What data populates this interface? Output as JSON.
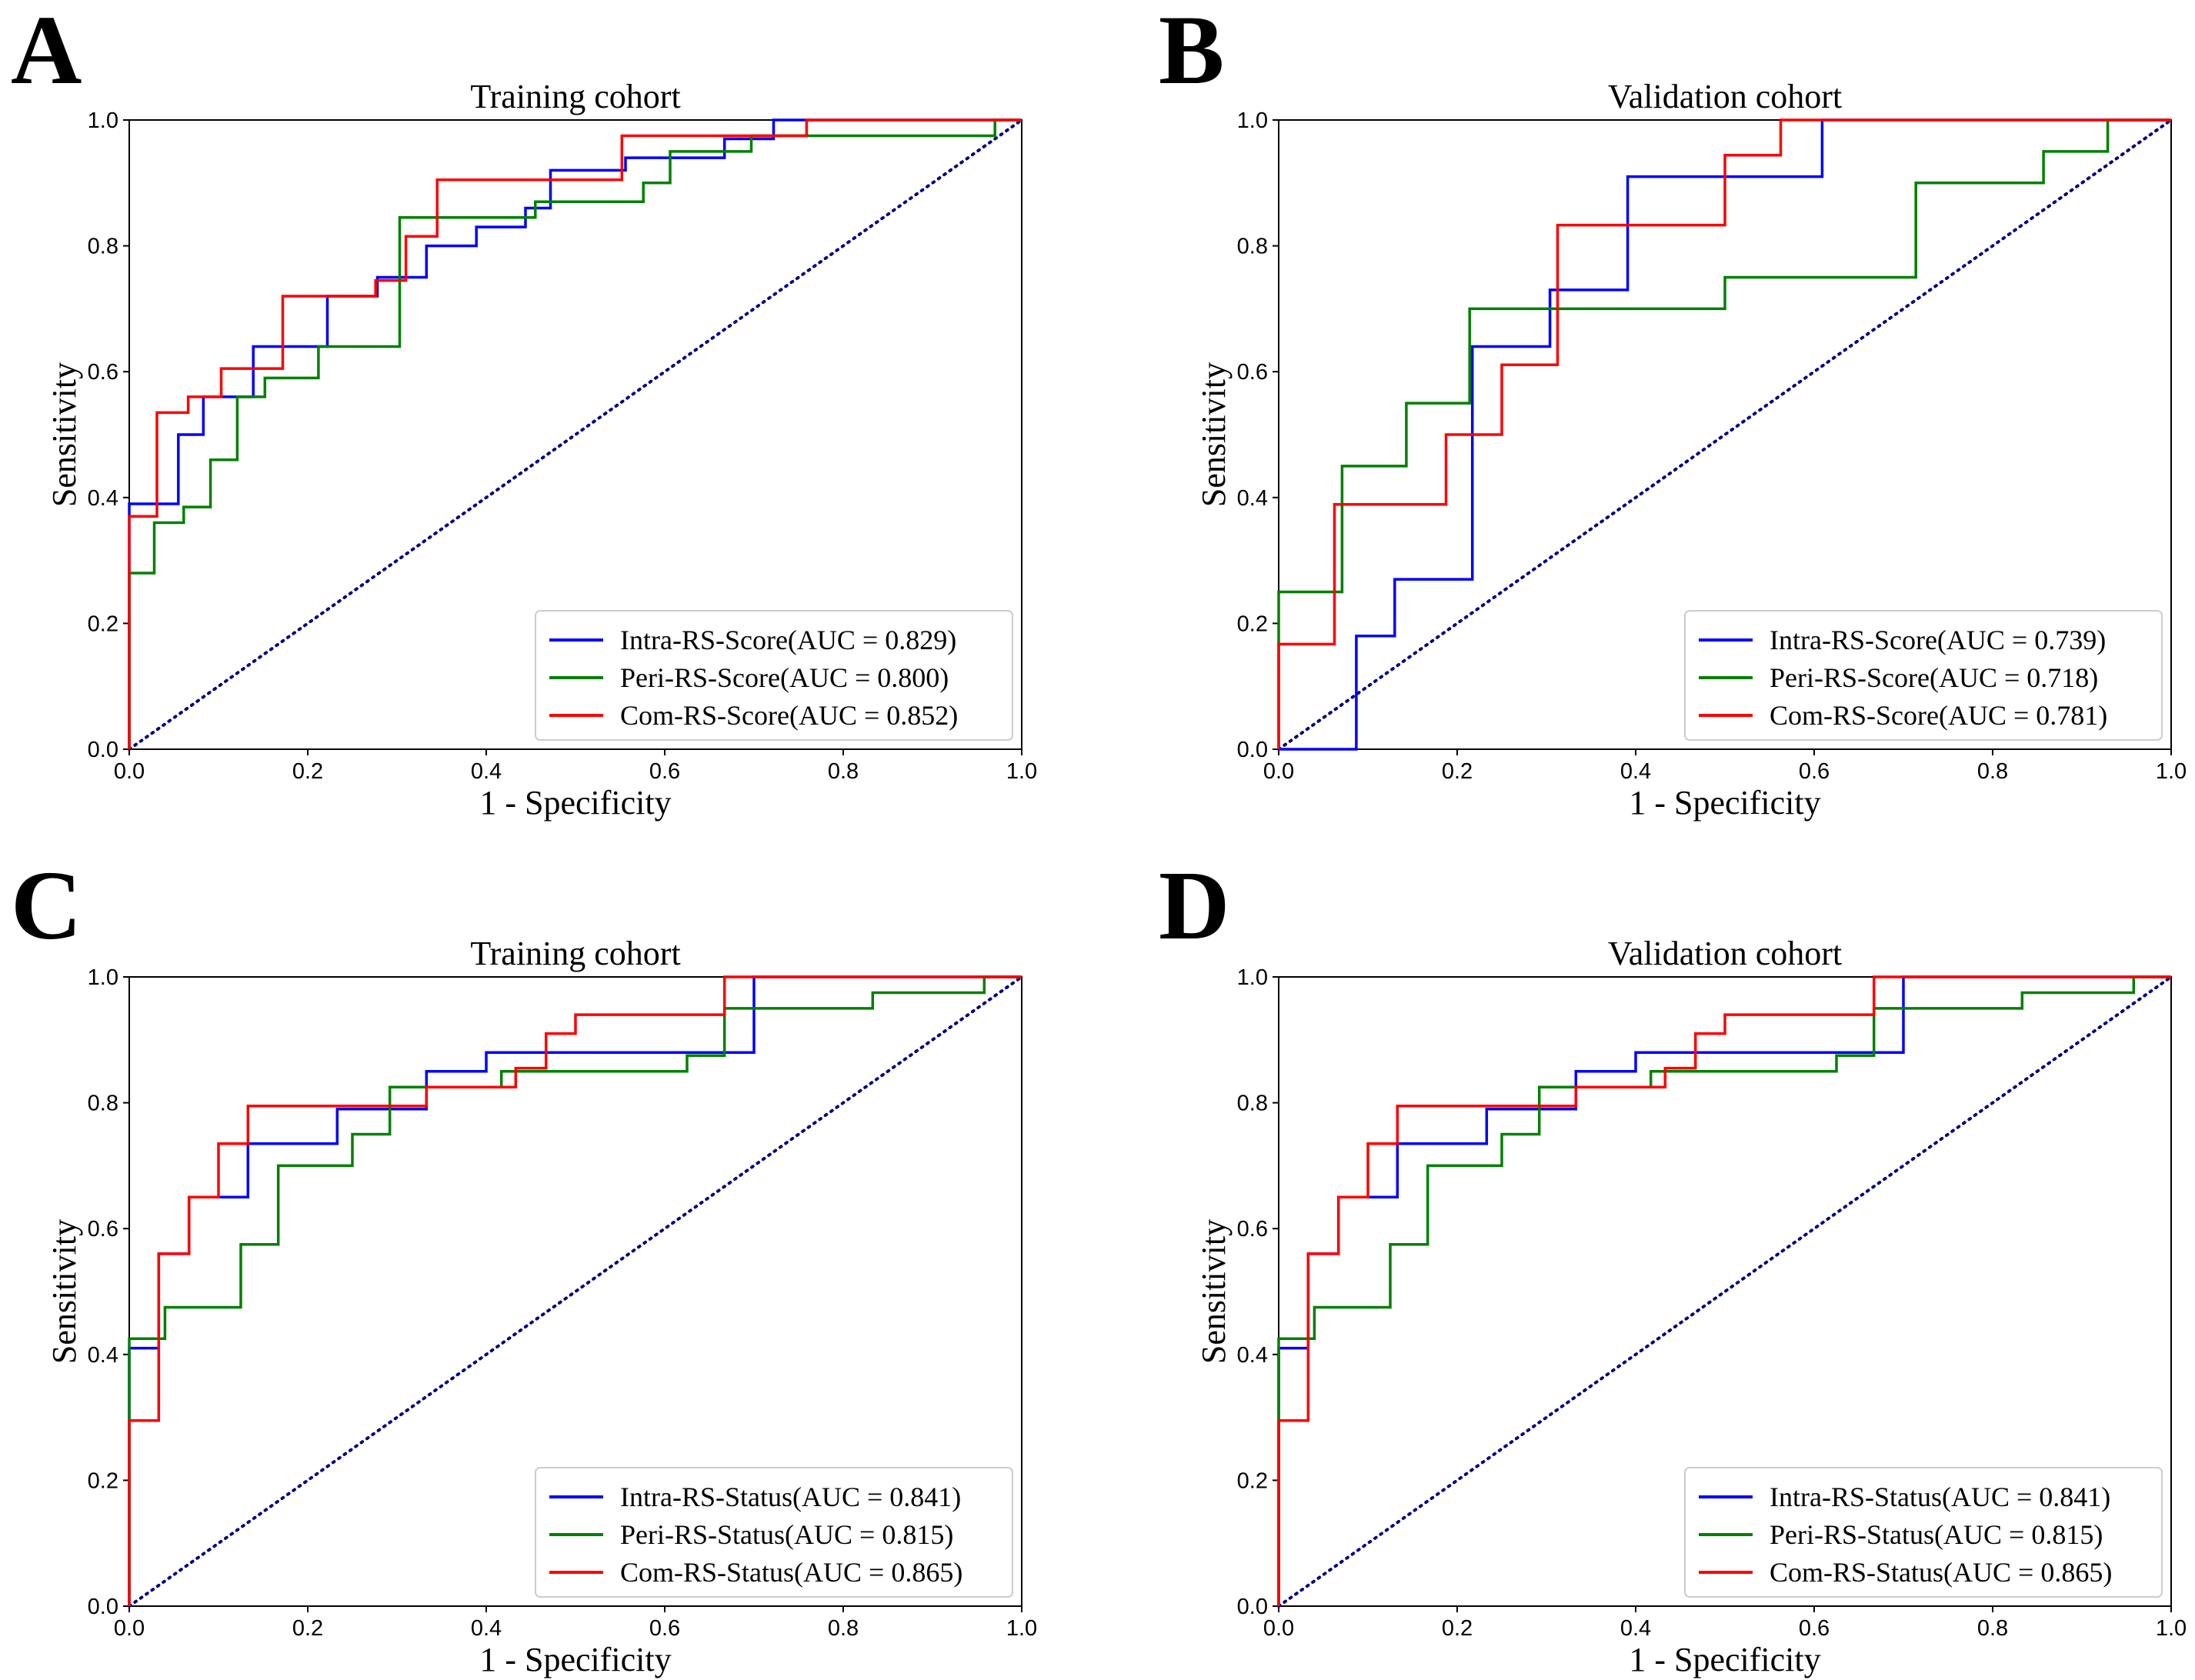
{
  "chart_data": [
    {
      "panel": "A",
      "type": "line",
      "title": "Training cohort",
      "xlabel": "1 - Specificity",
      "ylabel": "Sensitivity",
      "xlim": [
        0,
        1
      ],
      "ylim": [
        0,
        1
      ],
      "xticks": [
        "0.0",
        "0.2",
        "0.4",
        "0.6",
        "0.8",
        "1.0"
      ],
      "yticks": [
        "0.0",
        "0.2",
        "0.4",
        "0.6",
        "0.8",
        "1.0"
      ],
      "legend_position": "lower-right",
      "diagonal": {
        "color": "#000080",
        "style": "dotted"
      },
      "series": [
        {
          "name": "Intra-RS-Score(AUC = 0.829)",
          "color": "#0000ff",
          "x": [
            0,
            0,
            0.055,
            0.055,
            0.083,
            0.083,
            0.139,
            0.139,
            0.222,
            0.222,
            0.278,
            0.278,
            0.333,
            0.333,
            0.389,
            0.389,
            0.444,
            0.444,
            0.472,
            0.472,
            0.556,
            0.556,
            0.667,
            0.667,
            0.722,
            0.722,
            1.0
          ],
          "y": [
            0,
            0.39,
            0.39,
            0.5,
            0.5,
            0.56,
            0.56,
            0.64,
            0.64,
            0.72,
            0.72,
            0.75,
            0.75,
            0.8,
            0.8,
            0.83,
            0.83,
            0.86,
            0.86,
            0.92,
            0.92,
            0.94,
            0.94,
            0.97,
            0.97,
            1.0,
            1.0
          ]
        },
        {
          "name": "Peri-RS-Score(AUC = 0.800)",
          "color": "#008000",
          "x": [
            0,
            0,
            0.028,
            0.028,
            0.061,
            0.061,
            0.091,
            0.091,
            0.121,
            0.121,
            0.152,
            0.152,
            0.212,
            0.212,
            0.303,
            0.303,
            0.455,
            0.455,
            0.576,
            0.576,
            0.606,
            0.606,
            0.697,
            0.697,
            0.97,
            0.97,
            1.0
          ],
          "y": [
            0,
            0.28,
            0.28,
            0.36,
            0.36,
            0.385,
            0.385,
            0.46,
            0.46,
            0.56,
            0.56,
            0.59,
            0.59,
            0.64,
            0.64,
            0.845,
            0.845,
            0.87,
            0.87,
            0.9,
            0.9,
            0.95,
            0.95,
            0.975,
            0.975,
            1.0,
            1.0
          ]
        },
        {
          "name": "Com-RS-Score(AUC = 0.852)",
          "color": "#ff0000",
          "x": [
            0,
            0,
            0.031,
            0.031,
            0.066,
            0.066,
            0.103,
            0.103,
            0.172,
            0.172,
            0.276,
            0.276,
            0.31,
            0.31,
            0.345,
            0.345,
            0.552,
            0.552,
            0.759,
            0.759,
            1.0
          ],
          "y": [
            0,
            0.37,
            0.37,
            0.535,
            0.535,
            0.56,
            0.56,
            0.605,
            0.605,
            0.72,
            0.72,
            0.745,
            0.745,
            0.815,
            0.815,
            0.905,
            0.905,
            0.975,
            0.975,
            1.0,
            1.0
          ]
        }
      ]
    },
    {
      "panel": "B",
      "type": "line",
      "title": "Validation cohort",
      "xlabel": "1 - Specificity",
      "ylabel": "Sensitivity",
      "xlim": [
        0,
        1
      ],
      "ylim": [
        0,
        1
      ],
      "xticks": [
        "0.0",
        "0.2",
        "0.4",
        "0.6",
        "0.8",
        "1.0"
      ],
      "yticks": [
        "0.0",
        "0.2",
        "0.4",
        "0.6",
        "0.8",
        "1.0"
      ],
      "legend_position": "lower-right",
      "diagonal": {
        "color": "#000080",
        "style": "dotted"
      },
      "series": [
        {
          "name": "Intra-RS-Score(AUC = 0.739)",
          "color": "#0000ff",
          "x": [
            0,
            0.087,
            0.087,
            0.13,
            0.13,
            0.217,
            0.217,
            0.304,
            0.304,
            0.391,
            0.391,
            0.609,
            0.609,
            1.0
          ],
          "y": [
            0,
            0,
            0.18,
            0.18,
            0.27,
            0.27,
            0.64,
            0.64,
            0.73,
            0.73,
            0.91,
            0.91,
            1.0,
            1.0
          ]
        },
        {
          "name": "Peri-RS-Score(AUC = 0.718)",
          "color": "#008000",
          "x": [
            0,
            0,
            0.071,
            0.071,
            0.143,
            0.143,
            0.214,
            0.214,
            0.5,
            0.5,
            0.714,
            0.714,
            0.857,
            0.857,
            0.929,
            0.929,
            1.0
          ],
          "y": [
            0,
            0.25,
            0.25,
            0.45,
            0.45,
            0.55,
            0.55,
            0.7,
            0.7,
            0.75,
            0.75,
            0.9,
            0.9,
            0.95,
            0.95,
            1.0,
            1.0
          ]
        },
        {
          "name": "Com-RS-Score(AUC = 0.781)",
          "color": "#ff0000",
          "x": [
            0,
            0,
            0.0625,
            0.0625,
            0.1875,
            0.1875,
            0.25,
            0.25,
            0.3125,
            0.3125,
            0.5,
            0.5,
            0.5625,
            0.5625,
            1.0
          ],
          "y": [
            0,
            0.167,
            0.167,
            0.389,
            0.389,
            0.5,
            0.5,
            0.611,
            0.611,
            0.833,
            0.833,
            0.944,
            0.944,
            1.0,
            1.0
          ]
        }
      ]
    },
    {
      "panel": "C",
      "type": "line",
      "title": "Training cohort",
      "xlabel": "1 - Specificity",
      "ylabel": "Sensitivity",
      "xlim": [
        0,
        1
      ],
      "ylim": [
        0,
        1
      ],
      "xticks": [
        "0.0",
        "0.2",
        "0.4",
        "0.6",
        "0.8",
        "1.0"
      ],
      "yticks": [
        "0.0",
        "0.2",
        "0.4",
        "0.6",
        "0.8",
        "1.0"
      ],
      "legend_position": "lower-right",
      "diagonal": {
        "color": "#000080",
        "style": "dotted"
      },
      "series": [
        {
          "name": "Intra-RS-Status(AUC = 0.841)",
          "color": "#0000ff",
          "x": [
            0,
            0,
            0.033,
            0.033,
            0.067,
            0.067,
            0.133,
            0.133,
            0.233,
            0.233,
            0.333,
            0.333,
            0.4,
            0.4,
            0.7,
            0.7,
            1.0
          ],
          "y": [
            0,
            0.41,
            0.41,
            0.56,
            0.56,
            0.65,
            0.65,
            0.735,
            0.735,
            0.79,
            0.79,
            0.85,
            0.85,
            0.88,
            0.88,
            1.0,
            1.0
          ]
        },
        {
          "name": "Peri-RS-Status(AUC = 0.815)",
          "color": "#008000",
          "x": [
            0,
            0,
            0.04,
            0.04,
            0.125,
            0.125,
            0.167,
            0.167,
            0.25,
            0.25,
            0.292,
            0.292,
            0.417,
            0.417,
            0.625,
            0.625,
            0.667,
            0.667,
            0.833,
            0.833,
            0.958,
            0.958,
            1.0
          ],
          "y": [
            0,
            0.425,
            0.425,
            0.475,
            0.475,
            0.575,
            0.575,
            0.7,
            0.7,
            0.75,
            0.75,
            0.825,
            0.825,
            0.85,
            0.85,
            0.875,
            0.875,
            0.95,
            0.95,
            0.975,
            0.975,
            1.0,
            1.0
          ]
        },
        {
          "name": "Com-RS-Status(AUC = 0.865)",
          "color": "#ff0000",
          "x": [
            0,
            0,
            0.033,
            0.033,
            0.067,
            0.067,
            0.1,
            0.1,
            0.133,
            0.133,
            0.333,
            0.333,
            0.433,
            0.433,
            0.467,
            0.467,
            0.5,
            0.5,
            0.667,
            0.667,
            1.0
          ],
          "y": [
            0,
            0.295,
            0.295,
            0.56,
            0.56,
            0.65,
            0.65,
            0.735,
            0.735,
            0.795,
            0.795,
            0.825,
            0.825,
            0.855,
            0.855,
            0.91,
            0.91,
            0.94,
            0.94,
            1.0,
            1.0
          ]
        }
      ]
    },
    {
      "panel": "D",
      "type": "line",
      "title": "Validation cohort",
      "xlabel": "1 - Specificity",
      "ylabel": "Sensitivity",
      "xlim": [
        0,
        1
      ],
      "ylim": [
        0,
        1
      ],
      "xticks": [
        "0.0",
        "0.2",
        "0.4",
        "0.6",
        "0.8",
        "1.0"
      ],
      "yticks": [
        "0.0",
        "0.2",
        "0.4",
        "0.6",
        "0.8",
        "1.0"
      ],
      "legend_position": "lower-right",
      "diagonal": {
        "color": "#000080",
        "style": "dotted"
      },
      "series": [
        {
          "name": "Intra-RS-Status(AUC = 0.841)",
          "color": "#0000ff",
          "x": [
            0,
            0,
            0.033,
            0.033,
            0.067,
            0.067,
            0.133,
            0.133,
            0.233,
            0.233,
            0.333,
            0.333,
            0.4,
            0.4,
            0.7,
            0.7,
            1.0
          ],
          "y": [
            0,
            0.41,
            0.41,
            0.56,
            0.56,
            0.65,
            0.65,
            0.735,
            0.735,
            0.79,
            0.79,
            0.85,
            0.85,
            0.88,
            0.88,
            1.0,
            1.0
          ]
        },
        {
          "name": "Peri-RS-Status(AUC = 0.815)",
          "color": "#008000",
          "x": [
            0,
            0,
            0.04,
            0.04,
            0.125,
            0.125,
            0.167,
            0.167,
            0.25,
            0.25,
            0.292,
            0.292,
            0.417,
            0.417,
            0.625,
            0.625,
            0.667,
            0.667,
            0.833,
            0.833,
            0.958,
            0.958,
            1.0
          ],
          "y": [
            0,
            0.425,
            0.425,
            0.475,
            0.475,
            0.575,
            0.575,
            0.7,
            0.7,
            0.75,
            0.75,
            0.825,
            0.825,
            0.85,
            0.85,
            0.875,
            0.875,
            0.95,
            0.95,
            0.975,
            0.975,
            1.0,
            1.0
          ]
        },
        {
          "name": "Com-RS-Status(AUC = 0.865)",
          "color": "#ff0000",
          "x": [
            0,
            0,
            0.033,
            0.033,
            0.067,
            0.067,
            0.1,
            0.1,
            0.133,
            0.133,
            0.333,
            0.333,
            0.433,
            0.433,
            0.467,
            0.467,
            0.5,
            0.5,
            0.667,
            0.667,
            1.0
          ],
          "y": [
            0,
            0.295,
            0.295,
            0.56,
            0.56,
            0.65,
            0.65,
            0.735,
            0.735,
            0.795,
            0.795,
            0.825,
            0.825,
            0.855,
            0.855,
            0.91,
            0.91,
            0.94,
            0.94,
            1.0,
            1.0
          ]
        }
      ]
    }
  ]
}
